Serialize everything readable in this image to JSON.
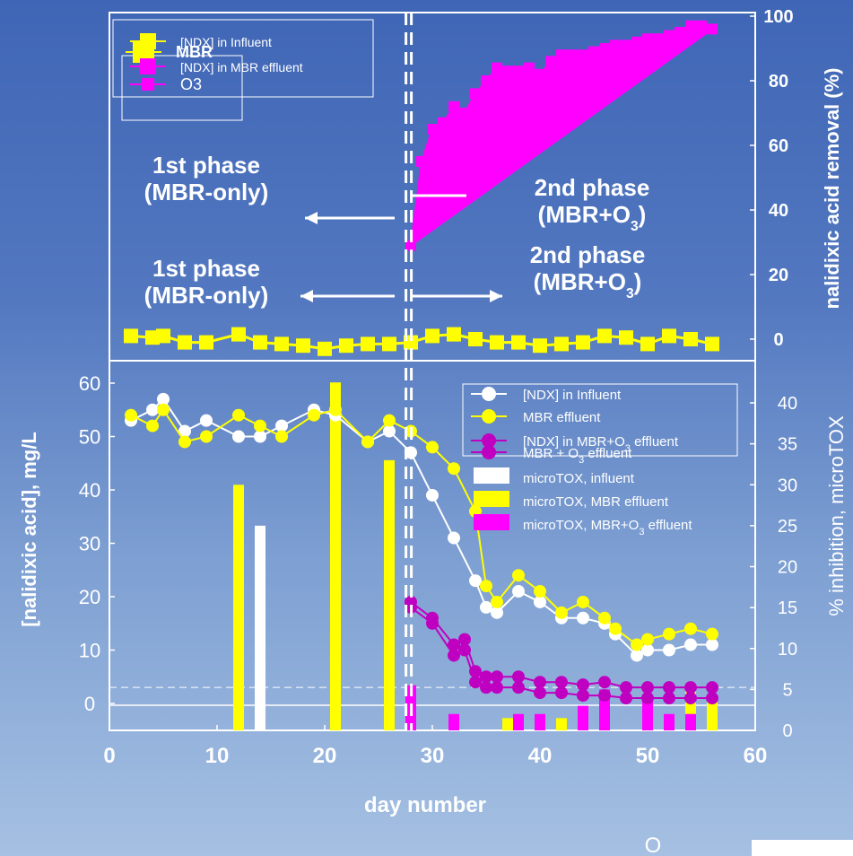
{
  "chart_data": [
    {
      "type": "line",
      "title": "",
      "ylabel": "nalidixic acid removal (%)",
      "xlabel": "",
      "xlim": [
        0,
        60
      ],
      "ylim": [
        -5,
        100
      ],
      "y_ticks": [
        "0",
        "20",
        "40",
        "60",
        "80",
        "100"
      ],
      "phase_divider_day": 27.8,
      "annotations": [
        {
          "lines": [
            "1st phase",
            "(MBR-only)"
          ]
        },
        {
          "lines": [
            "2nd phase",
            "(MBR+O3)"
          ]
        },
        {
          "lines": [
            "1st phase",
            "(MBR-only)"
          ]
        },
        {
          "lines": [
            "2nd phase",
            "(MBR+O3)"
          ]
        }
      ],
      "legend": [
        {
          "label": "[NDX] in Influent",
          "color": "#ffff00"
        },
        {
          "label": "MBR",
          "color": "#ffff00"
        },
        {
          "label": "[NDX] in MBR effluent",
          "color": "#ff00ff"
        },
        {
          "label": "O3",
          "color": "#ff00ff"
        }
      ],
      "series": [
        {
          "name": "MBR",
          "color": "#ffff00",
          "x": [
            2,
            4,
            5,
            7,
            9,
            12,
            14,
            16,
            18,
            20,
            22,
            24,
            26,
            28,
            30,
            32,
            34,
            36,
            38,
            40,
            42,
            44,
            46,
            48,
            50,
            52,
            54,
            56
          ],
          "y": [
            1,
            0.5,
            1,
            -1,
            -1,
            1.5,
            -1,
            -1.5,
            -2,
            -3,
            -2,
            -1.5,
            -1.5,
            -1,
            1,
            1.5,
            0,
            -1,
            -1,
            -2,
            -1.5,
            -1,
            1,
            0.5,
            -1.5,
            1,
            0,
            -1.5
          ]
        },
        {
          "name": "O3",
          "color": "#ff00ff",
          "x": [
            28,
            29,
            30,
            31,
            32,
            33,
            34,
            35,
            36,
            37,
            38,
            39,
            40,
            41,
            42,
            43,
            44,
            45,
            46,
            47,
            48,
            49,
            50,
            51,
            52,
            53,
            54,
            55,
            56
          ],
          "y": [
            29,
            55,
            65,
            67,
            72,
            70,
            76,
            80,
            84,
            83,
            83,
            84,
            82,
            86,
            88,
            88,
            88,
            89,
            90,
            91,
            91,
            92,
            93,
            93,
            94,
            95,
            97,
            97,
            96
          ]
        }
      ]
    },
    {
      "type": "bar",
      "title": "",
      "xlabel": "day number",
      "ylabel": "[nalidixic acid], mg/L",
      "y2label": "% inhibition, microTOX",
      "xlim": [
        0,
        60
      ],
      "ylim": [
        0,
        62
      ],
      "y2lim": [
        0,
        43
      ],
      "x_ticks": [
        "0",
        "10",
        "20",
        "30",
        "40",
        "50",
        "60"
      ],
      "y_ticks": [
        "0",
        "10",
        "20",
        "30",
        "40",
        "50",
        "60"
      ],
      "y2_ticks": [
        "0",
        "5",
        "10",
        "15",
        "20",
        "25",
        "30",
        "35",
        "40"
      ],
      "baseline_left_value": 3,
      "legend": [
        {
          "label": "[NDX] in Influent",
          "color": "#ffffff",
          "marker": "circle"
        },
        {
          "label": "MBR effluent",
          "color": "#ffff00",
          "marker": "circle"
        },
        {
          "label": "[NDX] in MBR+O3 effluent",
          "color": "#c000c0",
          "marker": "circle"
        },
        {
          "label": "MBR + O3 effluent",
          "color": "#c000c0",
          "marker": "circle"
        },
        {
          "label": "microTOX, influent",
          "color": "#ffffff",
          "marker": "bar"
        },
        {
          "label": "microTOX, MBR effluent",
          "color": "#ffff00",
          "marker": "bar"
        },
        {
          "label": "microTOX, MBR+O3 effluent",
          "color": "#ff00ff",
          "marker": "bar"
        }
      ],
      "series": [
        {
          "name": "[NDX] in Influent",
          "color": "#ffffff",
          "x": [
            2,
            4,
            5,
            7,
            9,
            12,
            14,
            16,
            19,
            21,
            24,
            26,
            28,
            30,
            32,
            34,
            35,
            36,
            38,
            40,
            42,
            44,
            46,
            47,
            49,
            50,
            52,
            54,
            56
          ],
          "y": [
            53,
            55,
            57,
            51,
            53,
            50,
            50,
            52,
            55,
            54,
            49,
            51,
            47,
            39,
            31,
            23,
            18,
            17,
            21,
            19,
            16,
            16,
            15,
            13,
            9,
            10,
            10,
            11,
            11
          ]
        },
        {
          "name": "MBR effluent",
          "color": "#ffff00",
          "x": [
            2,
            4,
            5,
            7,
            9,
            12,
            14,
            16,
            19,
            21,
            24,
            26,
            28,
            30,
            32,
            34,
            35,
            36,
            38,
            40,
            42,
            44,
            46,
            47,
            49,
            50,
            52,
            54,
            56
          ],
          "y": [
            54,
            52,
            55,
            49,
            50,
            54,
            52,
            50,
            54,
            55,
            49,
            53,
            51,
            48,
            44,
            36,
            22,
            19,
            24,
            21,
            17,
            19,
            16,
            14,
            11,
            12,
            13,
            14,
            13
          ]
        },
        {
          "name": "[NDX] in MBR+O3 effluent",
          "color": "#c000c0",
          "x": [
            28,
            30,
            32,
            33,
            34,
            35,
            36,
            38,
            40,
            42,
            44,
            46,
            48,
            50,
            52,
            54,
            56
          ],
          "y": [
            18,
            15,
            9,
            10,
            4,
            3,
            3,
            3,
            2,
            2,
            1.5,
            1.5,
            1,
            1,
            1,
            1,
            1
          ]
        },
        {
          "name": "MBR + O3 effluent",
          "color": "#c000c0",
          "x": [
            28,
            30,
            32,
            33,
            34,
            35,
            36,
            38,
            40,
            42,
            44,
            46,
            48,
            50,
            52,
            54,
            56
          ],
          "y": [
            19,
            16,
            11,
            12,
            6,
            5,
            5,
            5,
            4,
            4,
            3.5,
            4,
            3,
            3,
            3,
            3,
            3
          ]
        }
      ],
      "bars": [
        {
          "name": "microTOX, MBR effluent",
          "color": "#ffff00",
          "x": [
            12,
            21,
            26,
            54,
            56
          ],
          "y": [
            30,
            42.5,
            33,
            5.5,
            3.5
          ]
        },
        {
          "name": "microTOX, influent",
          "color": "#ffffff",
          "x": [
            14
          ],
          "y": [
            25
          ]
        },
        {
          "name": "microTOX, MBR+O3 effluent",
          "color": "#ff00ff",
          "x": [
            28,
            32,
            38,
            40,
            44,
            46,
            50,
            52,
            54
          ],
          "y": [
            5.5,
            2,
            2,
            2,
            3,
            5,
            4,
            2,
            2
          ]
        },
        {
          "name": "microTOX, MBR effluent (2nd phase)",
          "color": "#ffff00",
          "x": [
            37,
            42
          ],
          "y": [
            1.5,
            1.5
          ]
        }
      ]
    }
  ],
  "footer_fragment": "O"
}
